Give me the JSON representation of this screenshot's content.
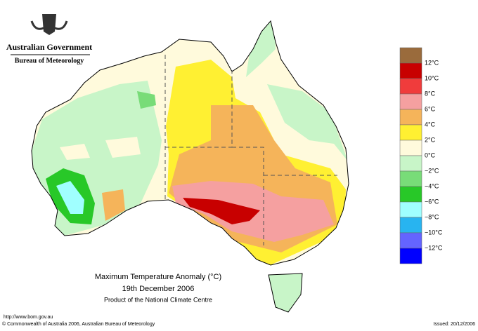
{
  "header": {
    "agency": "Australian Government",
    "bureau": "Bureau of Meteorology"
  },
  "title": {
    "line1": "Maximum Temperature Anomaly (°C)",
    "line2": "19th December 2006",
    "line3": "Product of the National Climate Centre"
  },
  "legend": {
    "colors": [
      "#9a6b3c",
      "#c80000",
      "#f03c3c",
      "#f5a0a0",
      "#f5b45a",
      "#fff032",
      "#fffadc",
      "#c8f5c8",
      "#78dc78",
      "#28c828",
      "#a0ffff",
      "#28b4f0",
      "#6464ff",
      "#0000ff"
    ],
    "labels": [
      "12°C",
      "10°C",
      "8°C",
      "6°C",
      "4°C",
      "2°C",
      "0°C",
      "−2°C",
      "−4°C",
      "−6°C",
      "−8°C",
      "−10°C",
      "−12°C"
    ]
  },
  "footer": {
    "url": "http://www.bom.gov.au",
    "copyright": "© Commonwealth of Australia 2006, Australian Bureau of Meteorology",
    "issued": "Issued: 20/12/2006"
  }
}
